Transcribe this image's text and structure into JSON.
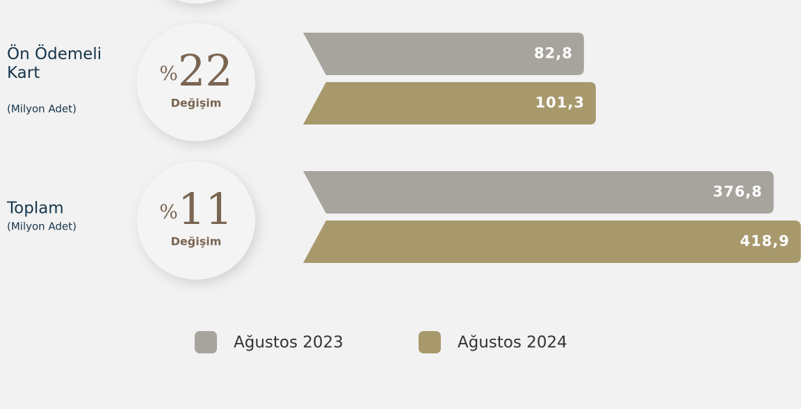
{
  "chart_data": {
    "type": "bar",
    "categories": [
      "Ön Ödemeli Kart",
      "Toplam"
    ],
    "sublabels": [
      "(Milyon Adet)",
      "(Milyon Adet)"
    ],
    "annotations": [
      {
        "symbol": "%",
        "value": 22,
        "label": "Değişim"
      },
      {
        "symbol": "%",
        "value": 11,
        "label": "Değişim"
      }
    ],
    "series": [
      {
        "name": "Ağustos 2023",
        "color": "#a7a49d",
        "values": [
          82.8,
          376.8
        ],
        "value_labels": [
          "82,8",
          "376,8"
        ]
      },
      {
        "name": "Ağustos 2024",
        "color": "#a8996c",
        "values": [
          101.3,
          418.9
        ],
        "value_labels": [
          "101,3",
          "418,9"
        ]
      }
    ]
  }
}
